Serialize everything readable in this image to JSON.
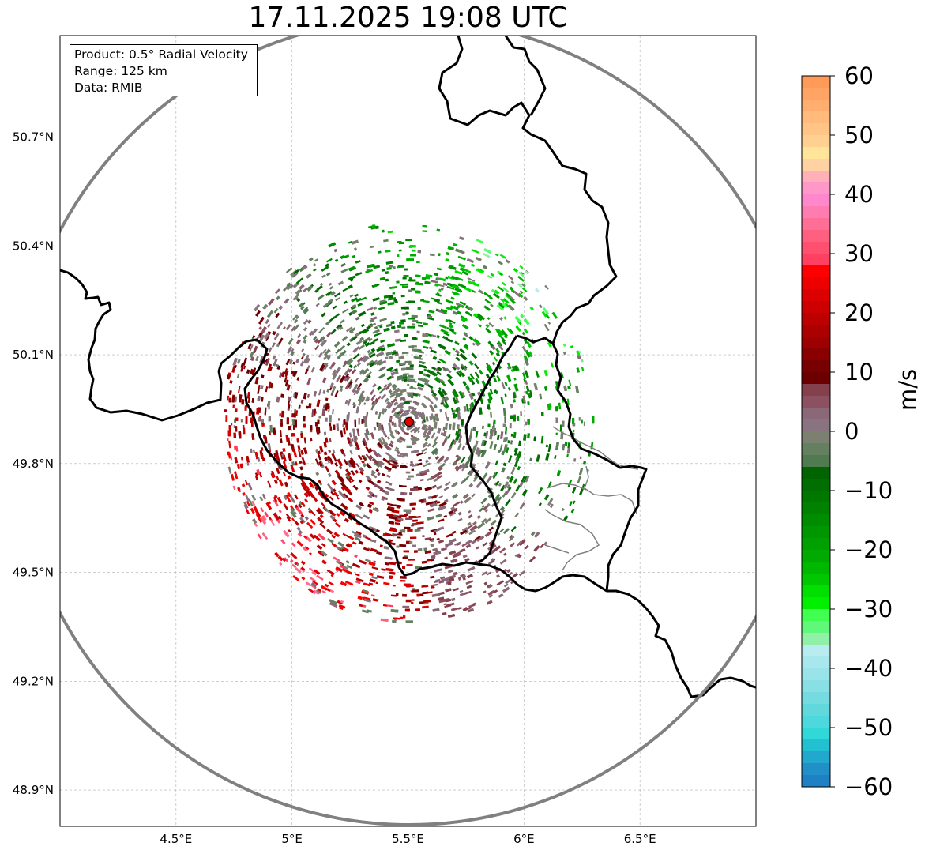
{
  "title": "17.11.2025 19:08 UTC",
  "info": {
    "product": "Product: 0.5° Radial Velocity",
    "range": "Range: 125 km",
    "source": "Data: RMIB"
  },
  "map": {
    "extent": {
      "lon_min": 4.0,
      "lon_max": 7.0,
      "lat_min": 48.8,
      "lat_max": 50.98
    },
    "radar_site": {
      "lon": 5.505,
      "lat": 49.915
    },
    "lon_ticks": [
      {
        "value": 4.5,
        "label": "4.5°E"
      },
      {
        "value": 5.0,
        "label": "5°E"
      },
      {
        "value": 5.5,
        "label": "5.5°E"
      },
      {
        "value": 6.0,
        "label": "6°E"
      },
      {
        "value": 6.5,
        "label": "6.5°E"
      }
    ],
    "lat_ticks": [
      {
        "value": 48.9,
        "label": "48.9°N"
      },
      {
        "value": 49.2,
        "label": "49.2°N"
      },
      {
        "value": 49.5,
        "label": "49.5°N"
      },
      {
        "value": 49.8,
        "label": "49.8°N"
      },
      {
        "value": 50.1,
        "label": "50.1°N"
      },
      {
        "value": 50.4,
        "label": "50.4°N"
      },
      {
        "value": 50.7,
        "label": "50.7°N"
      }
    ],
    "colors": {
      "range_ring": "#808080",
      "border": "#000000",
      "sub_border": "#808080",
      "grid": "#b0b0b0",
      "site_marker": "#e00000"
    }
  },
  "colorbar": {
    "label": "m/s",
    "min": -60,
    "max": 60,
    "ticks": [
      {
        "value": 60,
        "label": "60"
      },
      {
        "value": 50,
        "label": "50"
      },
      {
        "value": 40,
        "label": "40"
      },
      {
        "value": 30,
        "label": "30"
      },
      {
        "value": 20,
        "label": "20"
      },
      {
        "value": 10,
        "label": "10"
      },
      {
        "value": 0,
        "label": "0"
      },
      {
        "value": -10,
        "label": "−10"
      },
      {
        "value": -20,
        "label": "−20"
      },
      {
        "value": -30,
        "label": "−30"
      },
      {
        "value": -40,
        "label": "−40"
      },
      {
        "value": -50,
        "label": "−50"
      },
      {
        "value": -60,
        "label": "−60"
      }
    ],
    "segments": [
      {
        "from": 58,
        "to": 60,
        "color": "#ff9a58"
      },
      {
        "from": 56,
        "to": 58,
        "color": "#ffa464"
      },
      {
        "from": 54,
        "to": 56,
        "color": "#ffae70"
      },
      {
        "from": 52,
        "to": 54,
        "color": "#ffba7c"
      },
      {
        "from": 50,
        "to": 52,
        "color": "#ffc486"
      },
      {
        "from": 48,
        "to": 50,
        "color": "#ffd090"
      },
      {
        "from": 46,
        "to": 48,
        "color": "#ffe49a"
      },
      {
        "from": 44,
        "to": 46,
        "color": "#ffd2a4"
      },
      {
        "from": 42,
        "to": 44,
        "color": "#ffb0b8"
      },
      {
        "from": 40,
        "to": 42,
        "color": "#ff98c8"
      },
      {
        "from": 38,
        "to": 40,
        "color": "#ff88cc"
      },
      {
        "from": 36,
        "to": 38,
        "color": "#ff7cb0"
      },
      {
        "from": 34,
        "to": 36,
        "color": "#ff6e94"
      },
      {
        "from": 32,
        "to": 34,
        "color": "#ff6080"
      },
      {
        "from": 30,
        "to": 32,
        "color": "#ff5070"
      },
      {
        "from": 28,
        "to": 30,
        "color": "#ff4060"
      },
      {
        "from": 26,
        "to": 28,
        "color": "#ff0000"
      },
      {
        "from": 24,
        "to": 26,
        "color": "#ec0000"
      },
      {
        "from": 22,
        "to": 24,
        "color": "#dc0000"
      },
      {
        "from": 20,
        "to": 22,
        "color": "#cc0000"
      },
      {
        "from": 18,
        "to": 20,
        "color": "#bc0000"
      },
      {
        "from": 16,
        "to": 18,
        "color": "#ac0000"
      },
      {
        "from": 14,
        "to": 16,
        "color": "#9c0000"
      },
      {
        "from": 12,
        "to": 14,
        "color": "#8a0000"
      },
      {
        "from": 10,
        "to": 12,
        "color": "#780000"
      },
      {
        "from": 8,
        "to": 10,
        "color": "#6c0000"
      },
      {
        "from": 6,
        "to": 8,
        "color": "#84404c"
      },
      {
        "from": 4,
        "to": 6,
        "color": "#8c5060"
      },
      {
        "from": 2,
        "to": 4,
        "color": "#8a6878"
      },
      {
        "from": 0,
        "to": 2,
        "color": "#887480"
      },
      {
        "from": -2,
        "to": 0,
        "color": "#7c8070"
      },
      {
        "from": -4,
        "to": -2,
        "color": "#648060"
      },
      {
        "from": -6,
        "to": -4,
        "color": "#507a50"
      },
      {
        "from": -8,
        "to": -6,
        "color": "#006400"
      },
      {
        "from": -10,
        "to": -8,
        "color": "#006e00"
      },
      {
        "from": -12,
        "to": -10,
        "color": "#007800"
      },
      {
        "from": -14,
        "to": -12,
        "color": "#008200"
      },
      {
        "from": -16,
        "to": -14,
        "color": "#008c00"
      },
      {
        "from": -18,
        "to": -16,
        "color": "#009600"
      },
      {
        "from": -20,
        "to": -18,
        "color": "#00a000"
      },
      {
        "from": -22,
        "to": -20,
        "color": "#00aa00"
      },
      {
        "from": -24,
        "to": -22,
        "color": "#00b800"
      },
      {
        "from": -26,
        "to": -24,
        "color": "#00c800"
      },
      {
        "from": -28,
        "to": -26,
        "color": "#00e000"
      },
      {
        "from": -30,
        "to": -28,
        "color": "#00f000"
      },
      {
        "from": -32,
        "to": -30,
        "color": "#40ff50"
      },
      {
        "from": -34,
        "to": -32,
        "color": "#60f878"
      },
      {
        "from": -36,
        "to": -34,
        "color": "#90f0a8"
      },
      {
        "from": -38,
        "to": -36,
        "color": "#b8ecf0"
      },
      {
        "from": -40,
        "to": -38,
        "color": "#a8e8ec"
      },
      {
        "from": -42,
        "to": -40,
        "color": "#98e4e8"
      },
      {
        "from": -44,
        "to": -42,
        "color": "#88e0e4"
      },
      {
        "from": -46,
        "to": -44,
        "color": "#74dce0"
      },
      {
        "from": -48,
        "to": -46,
        "color": "#60d8dc"
      },
      {
        "from": -50,
        "to": -48,
        "color": "#4cd8dc"
      },
      {
        "from": -52,
        "to": -50,
        "color": "#30d8d8"
      },
      {
        "from": -54,
        "to": -52,
        "color": "#22c0d0"
      },
      {
        "from": -56,
        "to": -54,
        "color": "#22a8cc"
      },
      {
        "from": -58,
        "to": -56,
        "color": "#2290c8"
      },
      {
        "from": -60,
        "to": -58,
        "color": "#2080c4"
      }
    ]
  }
}
